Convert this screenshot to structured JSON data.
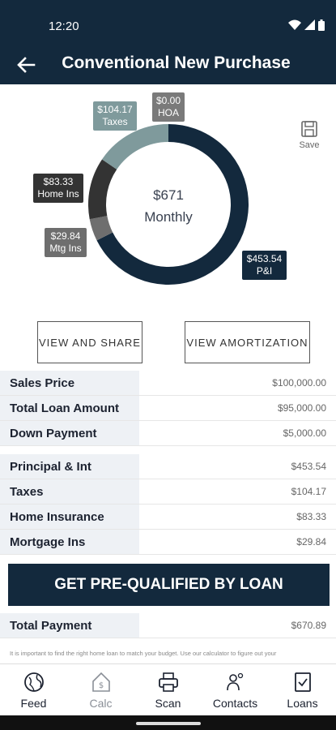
{
  "status_bar": {
    "time": "12:20"
  },
  "header": {
    "title": "Conventional New Purchase"
  },
  "chart_data": {
    "type": "pie",
    "center_amount": "$671",
    "center_label": "Monthly",
    "slices": [
      {
        "name": "P&I",
        "amount_label": "$453.54",
        "value": 453.54,
        "color": "#13293d"
      },
      {
        "name": "Taxes",
        "amount_label": "$104.17",
        "value": 104.17,
        "color": "#7f9a9c"
      },
      {
        "name": "HOA",
        "amount_label": "$0.00",
        "value": 0.0,
        "color": "#7a7a7a"
      },
      {
        "name": "Home Ins",
        "amount_label": "$83.33",
        "value": 83.33,
        "color": "#333333"
      },
      {
        "name": "Mtg Ins",
        "amount_label": "$29.84",
        "value": 29.84,
        "color": "#6e6e6e"
      }
    ]
  },
  "save_label": "Save",
  "buttons": {
    "view_share": "VIEW AND SHARE",
    "view_amortization": "VIEW AMORTIZATION",
    "prequalify": "GET PRE-QUALIFIED BY LOAN"
  },
  "loan_rows": [
    {
      "label": "Sales Price",
      "value": "$100,000.00"
    },
    {
      "label": "Total Loan Amount",
      "value": "$95,000.00"
    },
    {
      "label": "Down Payment",
      "value": "$5,000.00"
    }
  ],
  "payment_rows": [
    {
      "label": "Principal & Int",
      "value": "$453.54"
    },
    {
      "label": "Taxes",
      "value": "$104.17"
    },
    {
      "label": "Home Insurance",
      "value": "$83.33"
    },
    {
      "label": "Mortgage Ins",
      "value": "$29.84"
    }
  ],
  "total_row": {
    "label": "Total Payment",
    "value": "$670.89"
  },
  "disclaimer": "It is important to find the right home loan to match your budget. Use our calculator to figure out your",
  "tabs": [
    {
      "label": "Feed",
      "icon": "globe-icon"
    },
    {
      "label": "Calc",
      "icon": "calculator-home-icon"
    },
    {
      "label": "Scan",
      "icon": "printer-icon"
    },
    {
      "label": "Contacts",
      "icon": "contacts-icon"
    },
    {
      "label": "Loans",
      "icon": "loan-document-icon"
    }
  ]
}
